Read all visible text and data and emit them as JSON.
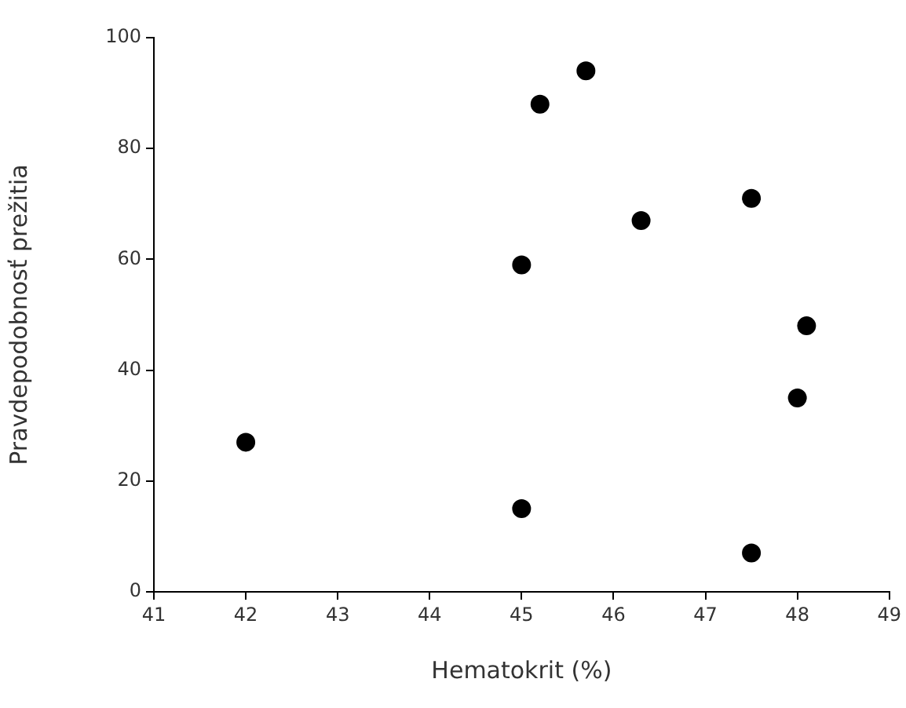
{
  "chart_data": {
    "type": "scatter",
    "xlabel": "Hematokrit (%)",
    "ylabel": "Pravdepodobnosť prežitia",
    "x": [
      42.0,
      45.0,
      45.0,
      45.2,
      45.7,
      46.3,
      47.5,
      47.5,
      48.0,
      48.1
    ],
    "series": [
      {
        "color": "#000000",
        "values": [
          27,
          15,
          59,
          88,
          94,
          67,
          71,
          7,
          35,
          48
        ]
      }
    ],
    "xlim": [
      41,
      49
    ],
    "xticks": [
      41,
      42,
      43,
      44,
      45,
      46,
      47,
      48,
      49
    ],
    "ylim": [
      0,
      100
    ],
    "yticks": [
      0,
      20,
      40,
      60,
      80,
      100
    ],
    "marker": "circle",
    "grid": false,
    "legend": false
  }
}
